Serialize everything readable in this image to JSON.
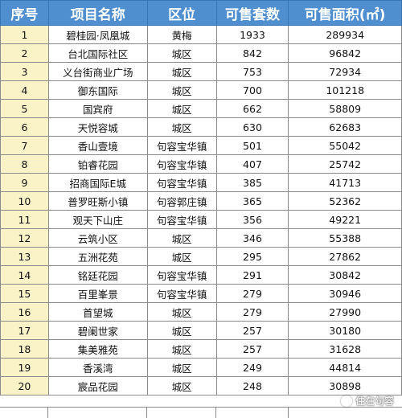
{
  "table": {
    "headers": [
      "序号",
      "项目名称",
      "区位",
      "可售套数",
      "可售面积(㎡)"
    ],
    "rows": [
      [
        "1",
        "碧桂园·凤凰城",
        "黄梅",
        "1933",
        "289934"
      ],
      [
        "2",
        "台北国际社区",
        "城区",
        "842",
        "96842"
      ],
      [
        "3",
        "义台街商业广场",
        "城区",
        "753",
        "72934"
      ],
      [
        "4",
        "御东国际",
        "城区",
        "700",
        "101218"
      ],
      [
        "5",
        "国宾府",
        "城区",
        "662",
        "58809"
      ],
      [
        "6",
        "天悦容城",
        "城区",
        "630",
        "62683"
      ],
      [
        "7",
        "香山壹境",
        "句容宝华镇",
        "501",
        "55042"
      ],
      [
        "8",
        "铂睿花园",
        "句容宝华镇",
        "407",
        "25742"
      ],
      [
        "9",
        "招商国际E城",
        "句容宝华镇",
        "385",
        "41713"
      ],
      [
        "10",
        "普罗旺斯小镇",
        "句容郭庄镇",
        "365",
        "52362"
      ],
      [
        "11",
        "观天下山庄",
        "句容宝华镇",
        "356",
        "49221"
      ],
      [
        "12",
        "云筑小区",
        "城区",
        "346",
        "55388"
      ],
      [
        "13",
        "五洲花苑",
        "城区",
        "295",
        "27862"
      ],
      [
        "14",
        "铭廷花园",
        "句容宝华镇",
        "291",
        "30842"
      ],
      [
        "15",
        "百里峯景",
        "句容宝华镇",
        "279",
        "30946"
      ],
      [
        "16",
        "首望城",
        "城区",
        "279",
        "27990"
      ],
      [
        "17",
        "碧阑世家",
        "城区",
        "257",
        "30180"
      ],
      [
        "18",
        "集美雅苑",
        "城区",
        "257",
        "31628"
      ],
      [
        "19",
        "香溪湾",
        "城区",
        "249",
        "44814"
      ],
      [
        "20",
        "宸品花园",
        "城区",
        "248",
        "30898"
      ]
    ]
  },
  "watermark": {
    "text": "住在句容",
    "icon": "logo-icon"
  },
  "colors": {
    "header_bg": "#4f8fd0",
    "header_text": "#ffffff",
    "index_col_bg": "#fbf3c8",
    "grid": "#8a8a8a"
  }
}
